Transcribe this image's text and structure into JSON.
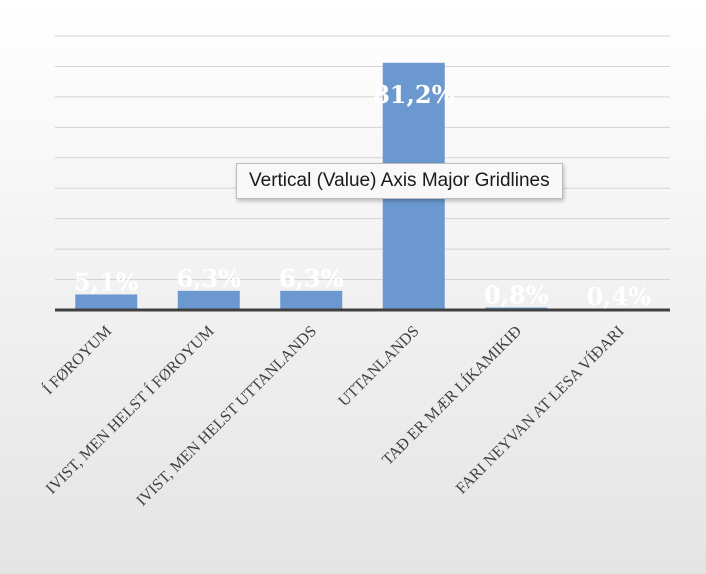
{
  "chart_data": {
    "type": "bar",
    "categories": [
      "Í FØROYUM",
      "IVIST, MEN HELST Í FØROYUM",
      "IVIST, MEN HELST UTTANLANDS",
      "UTTANLANDS",
      "TAÐ ER MÆR LÍKAMIKIÐ",
      "FARI NEYVAN AT LESA VÍÐARI"
    ],
    "values": [
      5.1,
      6.3,
      6.3,
      81.2,
      0.8,
      0.4
    ],
    "value_labels": [
      "5,1%",
      "6,3%",
      "6,3%",
      "81,2%",
      "0,8%",
      "0,4%"
    ],
    "ylim": [
      0,
      90
    ],
    "grid": true,
    "bar_color": "#6a98cf"
  },
  "tooltip": {
    "text": "Vertical (Value) Axis Major Gridlines"
  }
}
